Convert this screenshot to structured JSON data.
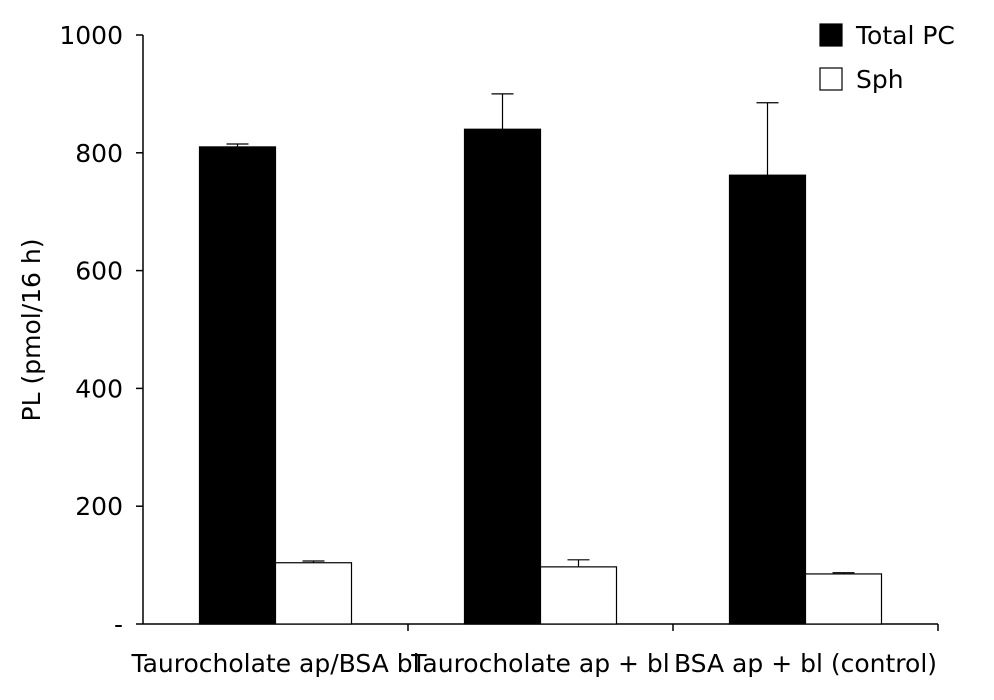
{
  "chart_data": {
    "type": "bar",
    "title": "",
    "xlabel": "",
    "ylabel": "PL (pmol/16 h)",
    "ylim": [
      0,
      1000
    ],
    "yticks": [
      {
        "value": 0,
        "label": "-"
      },
      {
        "value": 200,
        "label": "200"
      },
      {
        "value": 400,
        "label": "400"
      },
      {
        "value": 600,
        "label": "600"
      },
      {
        "value": 800,
        "label": "800"
      },
      {
        "value": 1000,
        "label": "1000"
      }
    ],
    "categories": [
      "Taurocholate ap/BSA bl",
      "Taurocholate ap + bl",
      "BSA ap + bl (control)"
    ],
    "series": [
      {
        "name": "Total PC",
        "color": "#000000",
        "values": [
          810,
          840,
          762
        ],
        "errors": [
          5,
          60,
          123
        ]
      },
      {
        "name": "Sph",
        "color": "#ffffff",
        "values": [
          104,
          97,
          85
        ],
        "errors": [
          3,
          12,
          2
        ]
      }
    ],
    "legend": {
      "position": "top-right"
    },
    "grid": false
  }
}
